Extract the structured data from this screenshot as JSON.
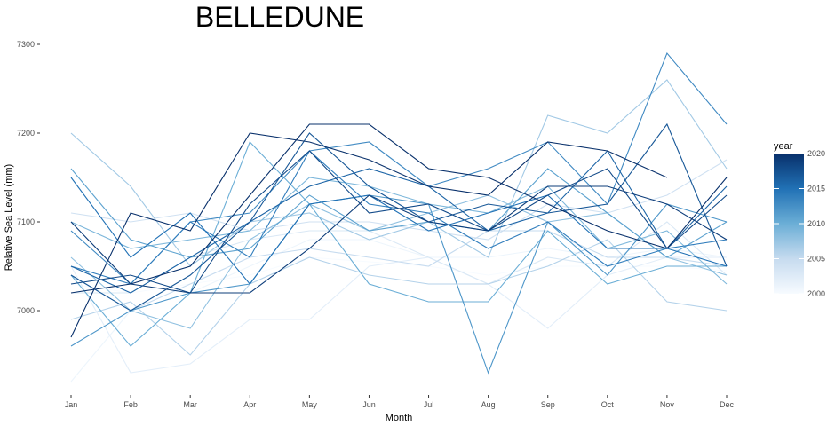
{
  "chart_data": {
    "type": "line",
    "title": "BELLEDUNE",
    "xlabel": "Month",
    "ylabel": "Relative Sea Level (mm)",
    "categories": [
      "Jan",
      "Feb",
      "Mar",
      "Apr",
      "May",
      "Jun",
      "Jul",
      "Aug",
      "Sep",
      "Oct",
      "Nov",
      "Dec"
    ],
    "y_ticks": [
      7000,
      7100,
      7200,
      7300
    ],
    "ylim": [
      6910,
      7305
    ],
    "grid": false,
    "legend": {
      "title": "year",
      "position": "right",
      "type": "colorbar",
      "range": [
        2000,
        2020
      ],
      "ticks": [
        2000,
        2005,
        2010,
        2015,
        2020
      ],
      "low_color": "#f7fbff",
      "high_color": "#08306b"
    },
    "series": [
      {
        "year": 2000,
        "values": [
          7030,
          7020,
          7030,
          7040,
          7060,
          7055,
          7050,
          7040,
          7050,
          7050,
          7050,
          7045
        ]
      },
      {
        "year": 2001,
        "values": [
          6920,
          7000,
          7020,
          7050,
          7080,
          7080,
          7060,
          7060,
          7070,
          7060,
          7070,
          7060
        ]
      },
      {
        "year": 2002,
        "values": [
          7050,
          6930,
          6940,
          6990,
          6990,
          7050,
          7060,
          7030,
          6980,
          7040,
          7060,
          7060
        ]
      },
      {
        "year": 2003,
        "values": [
          7020,
          7020,
          7060,
          7080,
          7090,
          7090,
          7060,
          7030,
          7060,
          7050,
          7100,
          7040
        ]
      },
      {
        "year": 2004,
        "values": [
          7110,
          7100,
          7110,
          7090,
          7100,
          7100,
          7090,
          7080,
          7120,
          7110,
          7130,
          7170
        ]
      },
      {
        "year": 2005,
        "values": [
          7040,
          7000,
          7030,
          7060,
          7070,
          7060,
          7050,
          7090,
          7090,
          7060,
          7060,
          7050
        ]
      },
      {
        "year": 2006,
        "values": [
          6990,
          7010,
          6950,
          7030,
          7060,
          7040,
          7030,
          7030,
          7050,
          7080,
          7010,
          7000
        ]
      },
      {
        "year": 2007,
        "values": [
          7200,
          7140,
          7050,
          7100,
          7110,
          7080,
          7100,
          7060,
          7220,
          7200,
          7260,
          7160
        ]
      },
      {
        "year": 2008,
        "values": [
          7060,
          7000,
          6980,
          7080,
          7120,
          7090,
          7110,
          7130,
          7100,
          7110,
          7060,
          7040
        ]
      },
      {
        "year": 2009,
        "values": [
          7100,
          7070,
          7080,
          7090,
          7150,
          7140,
          7120,
          7110,
          7140,
          7070,
          7090,
          7030
        ]
      },
      {
        "year": 2010,
        "values": [
          7040,
          6960,
          7020,
          7190,
          7120,
          7030,
          7010,
          7010,
          7090,
          7030,
          7050,
          7050
        ]
      },
      {
        "year": 2011,
        "values": [
          7160,
          7080,
          7060,
          7070,
          7130,
          7090,
          7100,
          7090,
          7160,
          7110,
          7060,
          7100
        ]
      },
      {
        "year": 2012,
        "values": [
          6960,
          7000,
          7020,
          7030,
          7120,
          7130,
          7120,
          6930,
          7100,
          7040,
          7120,
          7100
        ]
      },
      {
        "year": 2013,
        "values": [
          7090,
          7030,
          7100,
          7110,
          7180,
          7190,
          7140,
          7160,
          7190,
          7120,
          7290,
          7210
        ]
      },
      {
        "year": 2014,
        "values": [
          7050,
          7030,
          7100,
          7060,
          7180,
          7120,
          7110,
          7070,
          7100,
          7050,
          7070,
          7080
        ]
      },
      {
        "year": 2015,
        "values": [
          7150,
          7060,
          7110,
          7030,
          7120,
          7130,
          7090,
          7110,
          7130,
          7070,
          7070,
          7050
        ]
      },
      {
        "year": 2016,
        "values": [
          7050,
          7020,
          7060,
          7100,
          7140,
          7160,
          7140,
          7090,
          7110,
          7180,
          7070,
          7140
        ]
      },
      {
        "year": 2017,
        "values": [
          7040,
          7000,
          7040,
          7100,
          7200,
          7140,
          7100,
          7120,
          7110,
          7120,
          7210,
          7050
        ]
      },
      {
        "year": 2018,
        "values": [
          7030,
          7040,
          7020,
          7120,
          7180,
          7110,
          7120,
          7090,
          7130,
          7160,
          7070,
          7130
        ]
      },
      {
        "year": 2019,
        "values": [
          7100,
          7030,
          7020,
          7020,
          7070,
          7130,
          7100,
          7090,
          7140,
          7140,
          7120,
          7080
        ]
      },
      {
        "year": 2020,
        "values": [
          6970,
          7110,
          7090,
          7200,
          7190,
          7170,
          7140,
          7130,
          7190,
          7180,
          7150,
          null
        ]
      },
      {
        "year": 2021,
        "values": [
          7020,
          7030,
          7050,
          7130,
          7210,
          7210,
          7160,
          7150,
          7120,
          7090,
          7070,
          7150
        ]
      }
    ]
  }
}
